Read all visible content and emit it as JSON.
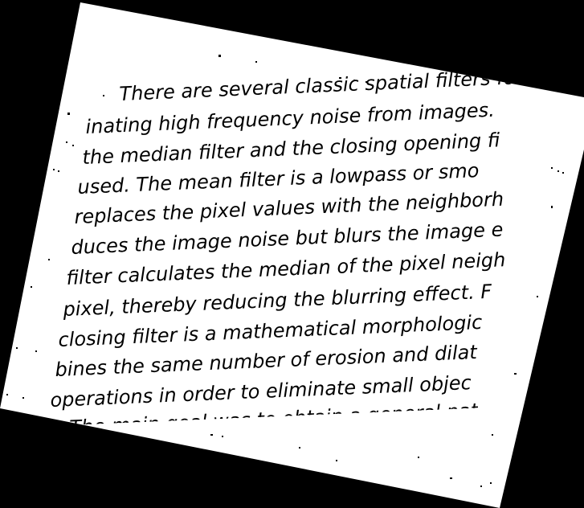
{
  "document": {
    "lines": [
      "There are several classic spatial filters for",
      "inating high frequency noise from images.",
      "the median filter and the closing opening fi",
      "used.  The mean filter is a lowpass or smo",
      "replaces the pixel values with the neighborh",
      "duces the image noise but blurs the image e",
      "filter calculates the median of the pixel neigh",
      "pixel, thereby reducing the blurring effect. F",
      "closing filter is a mathematical morphologic",
      "bines the same number of erosion and dilat",
      "operations in order to eliminate small objec",
      "The main goal was to obtain a general pat"
    ]
  },
  "colors": {
    "background": "#000000",
    "paper": "#ffffff",
    "ink": "#000000"
  }
}
